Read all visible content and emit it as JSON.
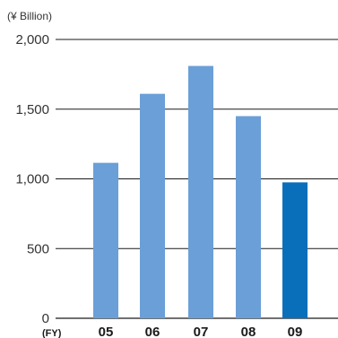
{
  "chart_data": {
    "type": "bar",
    "unit_label": "(¥ Billion)",
    "x_axis_label": "(FY)",
    "categories": [
      "05",
      "06",
      "07",
      "08",
      "09"
    ],
    "values": [
      1115,
      1610,
      1810,
      1450,
      975
    ],
    "ylim": [
      0,
      2000
    ],
    "yticks": [
      0,
      500,
      1000,
      1500,
      2000
    ],
    "ytick_labels": [
      "0",
      "500",
      "1,000",
      "1,500",
      "2,000"
    ],
    "grid": true,
    "colors": {
      "bar": "#6a9fd8",
      "highlight_bar": "#0a6fba",
      "grid": "#1a1a1a"
    },
    "highlight_index": 4
  }
}
